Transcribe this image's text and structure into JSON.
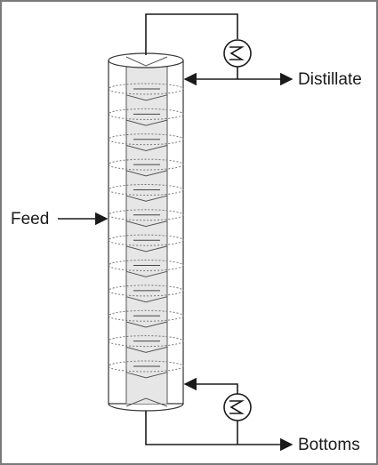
{
  "labels": {
    "distillate": "Distillate",
    "feed": "Feed",
    "bottoms": "Bottoms"
  },
  "column": {
    "trays": 12
  },
  "colors": {
    "line": "#1a1a1a",
    "column_fill": "#ffffff",
    "core_fill": "#e6e6e6",
    "frame": "#7a7a7a"
  },
  "icons": [
    "condenser-icon",
    "reboiler-icon"
  ]
}
